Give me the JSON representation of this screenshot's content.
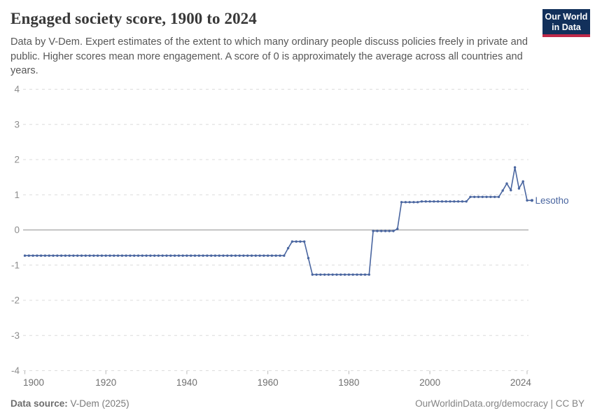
{
  "header": {
    "title": "Engaged society score, 1900 to 2024",
    "subtitle": "Data by V-Dem. Expert estimates of the extent to which many ordinary people discuss policies freely in private and public. Higher scores mean more engagement. A score of 0 is approximately the average across all countries and years.",
    "logo": {
      "line1": "Our World",
      "line2": "in Data",
      "bg_color": "#12305b",
      "accent_color": "#bf2949"
    }
  },
  "footer": {
    "source_label": "Data source:",
    "source_value": " V-Dem (2025)",
    "credit": "OurWorldinData.org/democracy | CC BY"
  },
  "chart_data": {
    "type": "line",
    "title": "Engaged society score, 1900 to 2024",
    "xlabel": "",
    "ylabel": "",
    "xlim": [
      1900,
      2024
    ],
    "ylim": [
      -4,
      4
    ],
    "yticks": [
      4,
      3,
      2,
      1,
      0,
      -1,
      -2,
      -3,
      -4
    ],
    "xticks": [
      1900,
      1920,
      1940,
      1960,
      1980,
      2000,
      2024
    ],
    "grid": "horizontal dashed gridlines, solid zero line",
    "legend": "end-of-line entity label",
    "series": [
      {
        "name": "Lesotho",
        "color": "#4a66a0",
        "x_start": 1900,
        "x_end": 2024,
        "x_step": 1,
        "values": [
          -0.73,
          -0.73,
          -0.73,
          -0.73,
          -0.73,
          -0.73,
          -0.73,
          -0.73,
          -0.73,
          -0.73,
          -0.73,
          -0.73,
          -0.73,
          -0.73,
          -0.73,
          -0.73,
          -0.73,
          -0.73,
          -0.73,
          -0.73,
          -0.73,
          -0.73,
          -0.73,
          -0.73,
          -0.73,
          -0.73,
          -0.73,
          -0.73,
          -0.73,
          -0.73,
          -0.73,
          -0.73,
          -0.73,
          -0.73,
          -0.73,
          -0.73,
          -0.73,
          -0.73,
          -0.73,
          -0.73,
          -0.73,
          -0.73,
          -0.73,
          -0.73,
          -0.73,
          -0.73,
          -0.73,
          -0.73,
          -0.73,
          -0.73,
          -0.73,
          -0.73,
          -0.73,
          -0.73,
          -0.73,
          -0.73,
          -0.73,
          -0.73,
          -0.73,
          -0.73,
          -0.73,
          -0.73,
          -0.73,
          -0.73,
          -0.73,
          -0.52,
          -0.33,
          -0.33,
          -0.33,
          -0.33,
          -0.8,
          -1.27,
          -1.27,
          -1.27,
          -1.27,
          -1.27,
          -1.27,
          -1.27,
          -1.27,
          -1.27,
          -1.27,
          -1.27,
          -1.27,
          -1.27,
          -1.27,
          -1.27,
          -0.03,
          -0.03,
          -0.03,
          -0.03,
          -0.03,
          -0.03,
          0.03,
          0.79,
          0.79,
          0.79,
          0.79,
          0.79,
          0.81,
          0.81,
          0.81,
          0.81,
          0.81,
          0.81,
          0.81,
          0.81,
          0.81,
          0.81,
          0.81,
          0.81,
          0.94,
          0.94,
          0.94,
          0.94,
          0.94,
          0.94,
          0.94,
          0.94,
          1.12,
          1.32,
          1.13,
          1.78,
          1.18,
          1.38,
          0.84
        ]
      }
    ]
  }
}
